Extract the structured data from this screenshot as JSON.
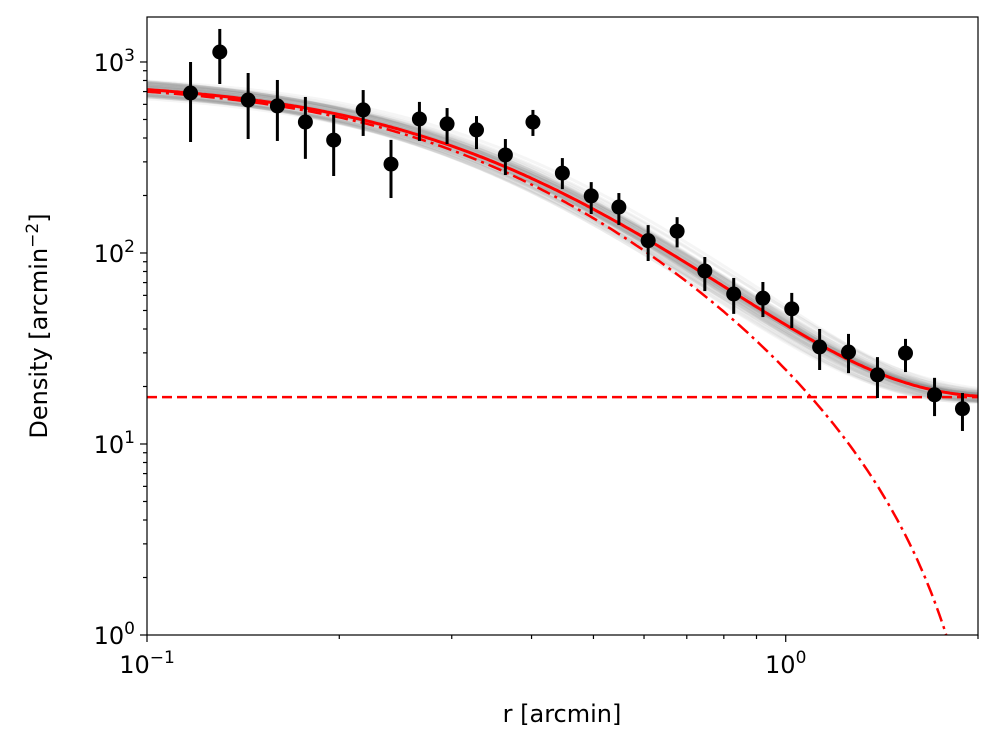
{
  "chart_data": {
    "type": "scatter",
    "title": "",
    "xlabel": "r [arcmin]",
    "ylabel_main": "Density [arcmin",
    "ylabel_exp": "−2",
    "ylabel_close": "]",
    "xscale": "log",
    "yscale": "log",
    "xlim": [
      0.1,
      2.0
    ],
    "ylim": [
      1,
      1720
    ],
    "grid": false,
    "xticks": [
      {
        "value": 0.1,
        "base": "10",
        "exp": "−1"
      },
      {
        "value": 1,
        "base": "10",
        "exp": "0"
      }
    ],
    "yticks": [
      {
        "value": 1,
        "base": "10",
        "exp": "0"
      },
      {
        "value": 10,
        "base": "10",
        "exp": "1"
      },
      {
        "value": 100,
        "base": "10",
        "exp": "2"
      },
      {
        "value": 1000,
        "base": "10",
        "exp": "3"
      }
    ],
    "data_points": {
      "color": "#000000",
      "x": [
        0.117,
        0.13,
        0.144,
        0.16,
        0.177,
        0.196,
        0.218,
        0.241,
        0.267,
        0.295,
        0.328,
        0.364,
        0.402,
        0.447,
        0.496,
        0.548,
        0.609,
        0.676,
        0.747,
        0.829,
        0.921,
        1.022,
        1.13,
        1.254,
        1.392,
        1.54,
        1.71,
        1.891
      ],
      "y": [
        688,
        1128,
        632,
        589,
        485,
        390,
        561,
        292,
        503,
        474,
        441,
        326,
        485,
        262,
        199,
        174,
        116,
        130,
        80.5,
        61,
        58,
        51,
        32.2,
        30.3,
        23.0,
        29.9,
        18.1,
        15.3
      ],
      "y_high": [
        1000,
        1489,
        876,
        805,
        656,
        528,
        713,
        391,
        618,
        574,
        521,
        395,
        561,
        314,
        235,
        206,
        140,
        154,
        95.3,
        74,
        70.5,
        61.8,
        40,
        37.7,
        28.5,
        35.5,
        22.2,
        18.5
      ],
      "y_low": [
        381,
        767,
        395,
        386,
        311,
        253,
        410,
        194,
        386,
        372,
        350,
        256,
        410,
        216,
        160,
        140,
        90.8,
        107,
        63.2,
        48,
        46.2,
        40.5,
        24.4,
        23.5,
        17.4,
        23.8,
        14.0,
        11.7
      ]
    },
    "model": {
      "type": "King profile + background",
      "color": "#ff0000",
      "k": 1056,
      "r_core": 0.3,
      "r_tidal": 2.2,
      "background": 17.6
    },
    "posterior_samples_color": "#808080"
  }
}
